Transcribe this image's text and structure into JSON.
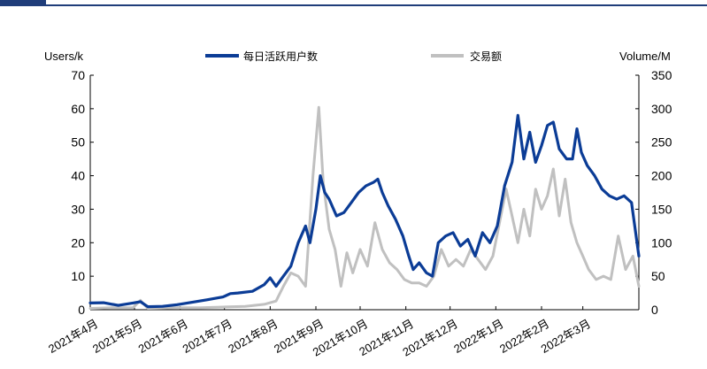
{
  "chart_data": {
    "type": "line",
    "title": "",
    "left_axis": {
      "label": "Users/k",
      "ylim": [
        0,
        70
      ],
      "ticks": [
        0,
        10,
        20,
        30,
        40,
        50,
        60,
        70
      ]
    },
    "right_axis": {
      "label": "Volume/M",
      "ylim": [
        0,
        350
      ],
      "ticks": [
        0,
        50,
        100,
        150,
        200,
        250,
        300,
        350
      ]
    },
    "x_tick_labels": [
      "2021年4月",
      "2021年5月",
      "2021年6月",
      "2021年7月",
      "2021年8月",
      "2021年9月",
      "2021年10月",
      "2021年11月",
      "2021年12月",
      "2022年1月",
      "2022年2月",
      "2022年3月"
    ],
    "x_range": [
      "2021-04-01",
      "2022-04-08"
    ],
    "legend": {
      "placement": "top"
    },
    "colors": {
      "dau": "#0b3c96",
      "volume": "#c0c0c0",
      "axis": "#000000",
      "brand": "#1f3d7a"
    },
    "series": [
      {
        "name": "每日活跃用户数",
        "axis": "left",
        "points": [
          [
            "2021-04-01",
            2
          ],
          [
            "2021-04-10",
            2.1
          ],
          [
            "2021-04-20",
            1.3
          ],
          [
            "2021-04-30",
            2
          ],
          [
            "2021-05-05",
            2.4
          ],
          [
            "2021-05-10",
            0.9
          ],
          [
            "2021-05-20",
            1
          ],
          [
            "2021-05-30",
            1.5
          ],
          [
            "2021-06-10",
            2.3
          ],
          [
            "2021-06-20",
            3
          ],
          [
            "2021-06-30",
            3.8
          ],
          [
            "2021-07-05",
            4.8
          ],
          [
            "2021-07-10",
            5
          ],
          [
            "2021-07-20",
            5.5
          ],
          [
            "2021-07-28",
            7.5
          ],
          [
            "2021-08-01",
            9.5
          ],
          [
            "2021-08-05",
            7
          ],
          [
            "2021-08-10",
            10
          ],
          [
            "2021-08-15",
            13
          ],
          [
            "2021-08-20",
            20
          ],
          [
            "2021-08-25",
            25
          ],
          [
            "2021-08-28",
            20
          ],
          [
            "2021-09-01",
            30
          ],
          [
            "2021-09-04",
            40
          ],
          [
            "2021-09-07",
            35
          ],
          [
            "2021-09-10",
            33
          ],
          [
            "2021-09-15",
            28
          ],
          [
            "2021-09-20",
            29
          ],
          [
            "2021-09-25",
            32
          ],
          [
            "2021-09-30",
            35
          ],
          [
            "2021-10-05",
            37
          ],
          [
            "2021-10-10",
            38
          ],
          [
            "2021-10-13",
            39
          ],
          [
            "2021-10-16",
            35
          ],
          [
            "2021-10-20",
            31
          ],
          [
            "2021-10-25",
            27
          ],
          [
            "2021-10-30",
            22
          ],
          [
            "2021-11-03",
            16
          ],
          [
            "2021-11-06",
            12
          ],
          [
            "2021-11-10",
            14
          ],
          [
            "2021-11-15",
            11
          ],
          [
            "2021-11-19",
            10
          ],
          [
            "2021-11-23",
            20
          ],
          [
            "2021-11-28",
            22
          ],
          [
            "2021-12-03",
            23
          ],
          [
            "2021-12-08",
            19
          ],
          [
            "2021-12-13",
            21
          ],
          [
            "2021-12-18",
            16
          ],
          [
            "2021-12-23",
            23
          ],
          [
            "2021-12-28",
            20
          ],
          [
            "2022-01-02",
            25
          ],
          [
            "2022-01-07",
            37
          ],
          [
            "2022-01-12",
            44
          ],
          [
            "2022-01-16",
            58
          ],
          [
            "2022-01-20",
            45
          ],
          [
            "2022-01-24",
            53
          ],
          [
            "2022-01-28",
            44
          ],
          [
            "2022-02-01",
            49
          ],
          [
            "2022-02-05",
            55
          ],
          [
            "2022-02-09",
            56
          ],
          [
            "2022-02-13",
            48
          ],
          [
            "2022-02-18",
            45
          ],
          [
            "2022-02-22",
            45
          ],
          [
            "2022-02-25",
            54
          ],
          [
            "2022-02-28",
            47
          ],
          [
            "2022-03-04",
            43
          ],
          [
            "2022-03-09",
            40
          ],
          [
            "2022-03-14",
            36
          ],
          [
            "2022-03-19",
            34
          ],
          [
            "2022-03-24",
            33
          ],
          [
            "2022-03-29",
            34
          ],
          [
            "2022-04-03",
            32
          ],
          [
            "2022-04-08",
            16
          ]
        ]
      },
      {
        "name": "交易额",
        "axis": "right",
        "points": [
          [
            "2021-04-01",
            2
          ],
          [
            "2021-04-15",
            3
          ],
          [
            "2021-04-30",
            3
          ],
          [
            "2021-05-05",
            14
          ],
          [
            "2021-05-10",
            2
          ],
          [
            "2021-05-30",
            3
          ],
          [
            "2021-06-15",
            3
          ],
          [
            "2021-06-30",
            4
          ],
          [
            "2021-07-15",
            5
          ],
          [
            "2021-07-28",
            8
          ],
          [
            "2021-08-05",
            13
          ],
          [
            "2021-08-10",
            35
          ],
          [
            "2021-08-15",
            55
          ],
          [
            "2021-08-20",
            50
          ],
          [
            "2021-08-25",
            35
          ],
          [
            "2021-08-30",
            200
          ],
          [
            "2021-09-03",
            302
          ],
          [
            "2021-09-06",
            190
          ],
          [
            "2021-09-10",
            120
          ],
          [
            "2021-09-14",
            90
          ],
          [
            "2021-09-18",
            35
          ],
          [
            "2021-09-22",
            85
          ],
          [
            "2021-09-26",
            55
          ],
          [
            "2021-10-01",
            90
          ],
          [
            "2021-10-06",
            65
          ],
          [
            "2021-10-11",
            130
          ],
          [
            "2021-10-16",
            90
          ],
          [
            "2021-10-21",
            70
          ],
          [
            "2021-10-26",
            60
          ],
          [
            "2021-10-31",
            45
          ],
          [
            "2021-11-05",
            40
          ],
          [
            "2021-11-10",
            40
          ],
          [
            "2021-11-15",
            35
          ],
          [
            "2021-11-20",
            50
          ],
          [
            "2021-11-25",
            90
          ],
          [
            "2021-11-30",
            65
          ],
          [
            "2021-12-05",
            75
          ],
          [
            "2021-12-10",
            65
          ],
          [
            "2021-12-15",
            90
          ],
          [
            "2021-12-20",
            75
          ],
          [
            "2021-12-25",
            60
          ],
          [
            "2021-12-30",
            80
          ],
          [
            "2022-01-04",
            135
          ],
          [
            "2022-01-08",
            180
          ],
          [
            "2022-01-12",
            140
          ],
          [
            "2022-01-16",
            100
          ],
          [
            "2022-01-20",
            150
          ],
          [
            "2022-01-24",
            110
          ],
          [
            "2022-01-28",
            180
          ],
          [
            "2022-02-01",
            150
          ],
          [
            "2022-02-05",
            170
          ],
          [
            "2022-02-09",
            210
          ],
          [
            "2022-02-13",
            140
          ],
          [
            "2022-02-17",
            195
          ],
          [
            "2022-02-21",
            130
          ],
          [
            "2022-02-25",
            100
          ],
          [
            "2022-03-01",
            80
          ],
          [
            "2022-03-05",
            60
          ],
          [
            "2022-03-10",
            45
          ],
          [
            "2022-03-15",
            50
          ],
          [
            "2022-03-20",
            45
          ],
          [
            "2022-03-25",
            110
          ],
          [
            "2022-03-30",
            60
          ],
          [
            "2022-04-04",
            80
          ],
          [
            "2022-04-08",
            35
          ]
        ]
      }
    ]
  }
}
